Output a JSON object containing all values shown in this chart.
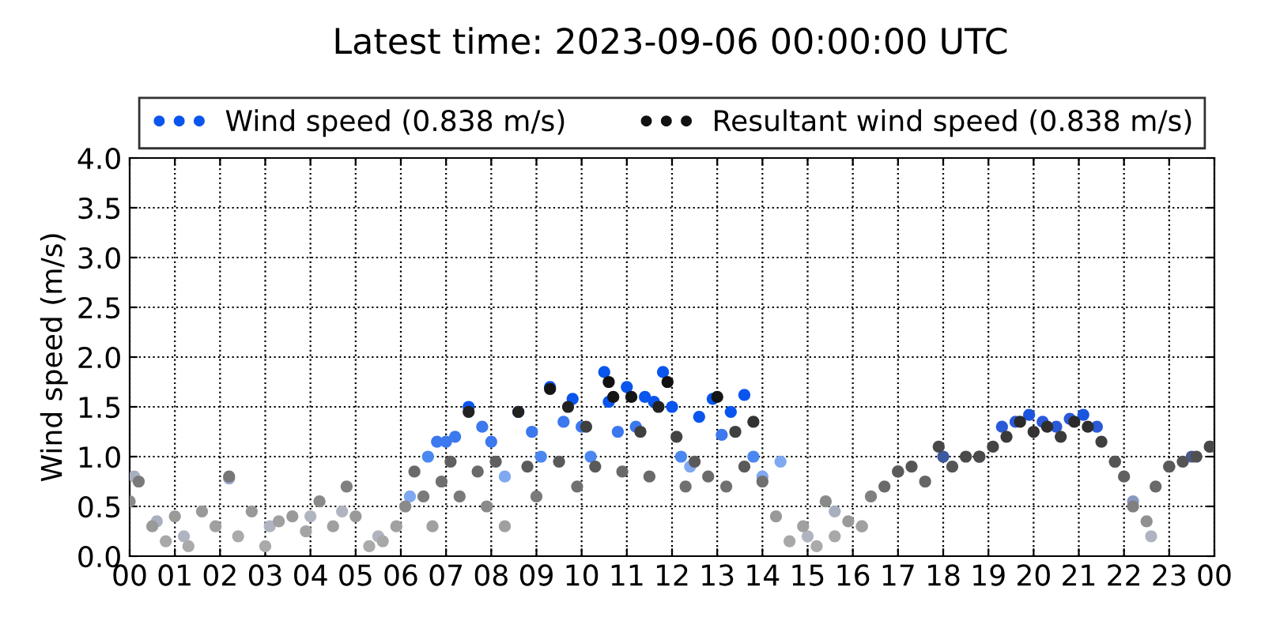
{
  "chart_data": {
    "type": "scatter",
    "title": "Latest time: 2023-09-06 00:00:00 UTC",
    "ylabel": "Wind speed (m/s)",
    "xlim": [
      0,
      24
    ],
    "xticks": [
      {
        "value": 0,
        "label": "00"
      },
      {
        "value": 1,
        "label": "01"
      },
      {
        "value": 2,
        "label": "02"
      },
      {
        "value": 3,
        "label": "03"
      },
      {
        "value": 4,
        "label": "04"
      },
      {
        "value": 5,
        "label": "05"
      },
      {
        "value": 6,
        "label": "06"
      },
      {
        "value": 7,
        "label": "07"
      },
      {
        "value": 8,
        "label": "08"
      },
      {
        "value": 9,
        "label": "09"
      },
      {
        "value": 10,
        "label": "10"
      },
      {
        "value": 11,
        "label": "11"
      },
      {
        "value": 12,
        "label": "12"
      },
      {
        "value": 13,
        "label": "13"
      },
      {
        "value": 14,
        "label": "14"
      },
      {
        "value": 15,
        "label": "15"
      },
      {
        "value": 16,
        "label": "16"
      },
      {
        "value": 17,
        "label": "17"
      },
      {
        "value": 18,
        "label": "18"
      },
      {
        "value": 19,
        "label": "19"
      },
      {
        "value": 20,
        "label": "20"
      },
      {
        "value": 21,
        "label": "21"
      },
      {
        "value": 22,
        "label": "22"
      },
      {
        "value": 23,
        "label": "23"
      },
      {
        "value": 24,
        "label": "00"
      }
    ],
    "ylim": [
      0,
      4
    ],
    "yticks": [
      {
        "value": 0,
        "label": "0.0"
      },
      {
        "value": 0.5,
        "label": "0.5"
      },
      {
        "value": 1,
        "label": "1.0"
      },
      {
        "value": 1.5,
        "label": "1.5"
      },
      {
        "value": 2,
        "label": "2.0"
      },
      {
        "value": 2.5,
        "label": "2.5"
      },
      {
        "value": 3,
        "label": "3.0"
      },
      {
        "value": 3.5,
        "label": "3.5"
      },
      {
        "value": 4,
        "label": "4.0"
      }
    ],
    "grid": true,
    "legend": "top",
    "marker": "circle",
    "series": [
      {
        "name": "Wind speed (0.838 m/s)",
        "color": "#0a55ee",
        "x": [
          0.1,
          0.6,
          1.2,
          2.2,
          3.1,
          4.0,
          4.7,
          5.5,
          6.2,
          6.6,
          6.8,
          7.0,
          7.2,
          7.5,
          7.8,
          8.0,
          8.3,
          8.6,
          8.9,
          9.1,
          9.3,
          9.6,
          9.8,
          10.0,
          10.2,
          10.5,
          10.6,
          10.8,
          11.0,
          11.2,
          11.4,
          11.6,
          11.8,
          12.0,
          12.2,
          12.4,
          12.6,
          12.9,
          13.1,
          13.3,
          13.6,
          13.8,
          14.0,
          14.4,
          15.0,
          15.6,
          16.2,
          17.0,
          18.0,
          18.8,
          19.3,
          19.6,
          19.9,
          20.2,
          20.5,
          20.8,
          21.1,
          21.4,
          21.8,
          22.2,
          22.6,
          23.0,
          23.5,
          23.9
        ],
        "values": [
          0.8,
          0.35,
          0.2,
          0.78,
          0.3,
          0.4,
          0.45,
          0.2,
          0.6,
          1.0,
          1.15,
          1.15,
          1.2,
          1.5,
          1.3,
          1.15,
          0.8,
          1.45,
          1.25,
          1.0,
          1.7,
          1.35,
          1.58,
          1.3,
          1.0,
          1.85,
          1.55,
          1.25,
          1.7,
          1.3,
          1.6,
          1.55,
          1.85,
          1.5,
          1.0,
          0.9,
          1.4,
          1.58,
          1.22,
          1.45,
          1.62,
          1.0,
          0.8,
          0.95,
          0.2,
          0.45,
          0.3,
          0.85,
          1.0,
          1.0,
          1.3,
          1.35,
          1.42,
          1.35,
          1.3,
          1.38,
          1.42,
          1.3,
          0.95,
          0.55,
          0.2,
          0.9,
          1.0,
          1.1
        ],
        "colors": [
          "#a8b0c0",
          "#a8b0c0",
          "#b0b4c0",
          "#9aa8c8",
          "#b0b4c0",
          "#b0b4c0",
          "#b0b4c0",
          "#b0b4c0",
          "#7fa8f0",
          "#4a88f0",
          "#3c78ee",
          "#3c78ee",
          "#3c78ee",
          "#0a55ee",
          "#3c78ee",
          "#3c78ee",
          "#7fa8f0",
          "#0a55ee",
          "#3c78ee",
          "#4a88f0",
          "#0a55ee",
          "#3c78ee",
          "#0a55ee",
          "#3c78ee",
          "#4a88f0",
          "#0a55ee",
          "#0a55ee",
          "#3c78ee",
          "#0a55ee",
          "#3c78ee",
          "#0a55ee",
          "#0a55ee",
          "#0a55ee",
          "#0a55ee",
          "#4a88f0",
          "#7fa8f0",
          "#0a55ee",
          "#0a55ee",
          "#3c78ee",
          "#0a55ee",
          "#0a55ee",
          "#4a88f0",
          "#7fa8f0",
          "#7fa8f0",
          "#b0b4c0",
          "#a8b0c0",
          "#b0b4c0",
          "#5a6a90",
          "#3c5aa0",
          "#3c5aa0",
          "#2a5ad8",
          "#2a5ad8",
          "#1a55e0",
          "#2a5ad8",
          "#2a5ad8",
          "#2a5ad8",
          "#1a55e0",
          "#2a5ad8",
          "#5a6a90",
          "#8898c0",
          "#b0b4c0",
          "#5a6a90",
          "#4a5a90",
          "#4a5a90"
        ]
      },
      {
        "name": "Resultant wind speed (0.838 m/s)",
        "color": "#111111",
        "x": [
          0.0,
          0.2,
          0.5,
          0.8,
          1.0,
          1.3,
          1.6,
          1.9,
          2.2,
          2.4,
          2.7,
          3.0,
          3.3,
          3.6,
          3.9,
          4.2,
          4.5,
          4.8,
          5.0,
          5.3,
          5.6,
          5.9,
          6.1,
          6.3,
          6.5,
          6.7,
          6.9,
          7.1,
          7.3,
          7.5,
          7.7,
          7.9,
          8.1,
          8.3,
          8.6,
          8.8,
          9.0,
          9.3,
          9.5,
          9.7,
          9.9,
          10.1,
          10.3,
          10.6,
          10.7,
          10.9,
          11.1,
          11.3,
          11.5,
          11.7,
          11.9,
          12.1,
          12.3,
          12.5,
          12.8,
          13.0,
          13.2,
          13.4,
          13.6,
          13.8,
          14.0,
          14.3,
          14.6,
          14.9,
          15.2,
          15.4,
          15.6,
          15.9,
          16.2,
          16.4,
          16.7,
          17.0,
          17.3,
          17.6,
          17.9,
          18.2,
          18.5,
          18.8,
          19.1,
          19.4,
          19.7,
          20.0,
          20.3,
          20.6,
          20.9,
          21.2,
          21.5,
          21.8,
          22.0,
          22.2,
          22.5,
          22.7,
          23.0,
          23.3,
          23.6,
          23.9
        ],
        "values": [
          0.55,
          0.75,
          0.3,
          0.15,
          0.4,
          0.1,
          0.45,
          0.3,
          0.8,
          0.2,
          0.45,
          0.1,
          0.35,
          0.4,
          0.25,
          0.55,
          0.3,
          0.7,
          0.4,
          0.1,
          0.15,
          0.3,
          0.5,
          0.85,
          0.6,
          0.3,
          0.75,
          0.95,
          0.6,
          1.45,
          0.85,
          0.5,
          0.95,
          0.3,
          1.45,
          0.9,
          0.6,
          1.68,
          0.95,
          1.5,
          0.7,
          1.3,
          0.9,
          1.75,
          1.6,
          0.85,
          1.6,
          1.25,
          0.8,
          1.5,
          1.75,
          1.2,
          0.7,
          0.95,
          0.8,
          1.6,
          0.7,
          1.25,
          0.9,
          1.35,
          0.75,
          0.4,
          0.15,
          0.3,
          0.1,
          0.55,
          0.2,
          0.35,
          0.3,
          0.6,
          0.7,
          0.85,
          0.9,
          0.75,
          1.1,
          0.9,
          1.0,
          1.0,
          1.1,
          1.2,
          1.35,
          1.25,
          1.3,
          1.2,
          1.35,
          1.3,
          1.15,
          0.95,
          0.8,
          0.5,
          0.35,
          0.7,
          0.9,
          0.95,
          1.0,
          1.1
        ],
        "colors": [
          "#8a8a8a",
          "#7a7a7a",
          "#9a9a9a",
          "#a8a8a8",
          "#9a9a9a",
          "#aaaaaa",
          "#999999",
          "#a0a0a0",
          "#777777",
          "#aaaaaa",
          "#999999",
          "#aaaaaa",
          "#a0a0a0",
          "#999999",
          "#a4a4a4",
          "#8a8a8a",
          "#a0a0a0",
          "#808080",
          "#999999",
          "#aaaaaa",
          "#a8a8a8",
          "#a0a0a0",
          "#8a8a8a",
          "#6a6a6a",
          "#7a7a7a",
          "#a0a0a0",
          "#707070",
          "#606060",
          "#7a7a7a",
          "#222222",
          "#6a6a6a",
          "#8a8a8a",
          "#606060",
          "#a0a0a0",
          "#222222",
          "#5a5a5a",
          "#7a7a7a",
          "#151515",
          "#5a5a5a",
          "#222222",
          "#707070",
          "#404040",
          "#5a5a5a",
          "#111111",
          "#151515",
          "#6a6a6a",
          "#151515",
          "#404040",
          "#6a6a6a",
          "#222222",
          "#111111",
          "#444444",
          "#707070",
          "#5a5a5a",
          "#6a6a6a",
          "#151515",
          "#707070",
          "#404040",
          "#5a5a5a",
          "#333333",
          "#707070",
          "#999999",
          "#a8a8a8",
          "#a0a0a0",
          "#aaaaaa",
          "#8a8a8a",
          "#a8a8a8",
          "#9a9a9a",
          "#a0a0a0",
          "#808080",
          "#6a6a6a",
          "#5a5a5a",
          "#555555",
          "#666666",
          "#484848",
          "#555555",
          "#4a4a4a",
          "#4a4a4a",
          "#444444",
          "#3a3a3a",
          "#2a2a2a",
          "#333333",
          "#2e2e2e",
          "#3a3a3a",
          "#2a2a2a",
          "#2e2e2e",
          "#404040",
          "#555555",
          "#606060",
          "#808080",
          "#909090",
          "#6a6a6a",
          "#5a5a5a",
          "#555555",
          "#505050",
          "#484848"
        ]
      }
    ]
  }
}
